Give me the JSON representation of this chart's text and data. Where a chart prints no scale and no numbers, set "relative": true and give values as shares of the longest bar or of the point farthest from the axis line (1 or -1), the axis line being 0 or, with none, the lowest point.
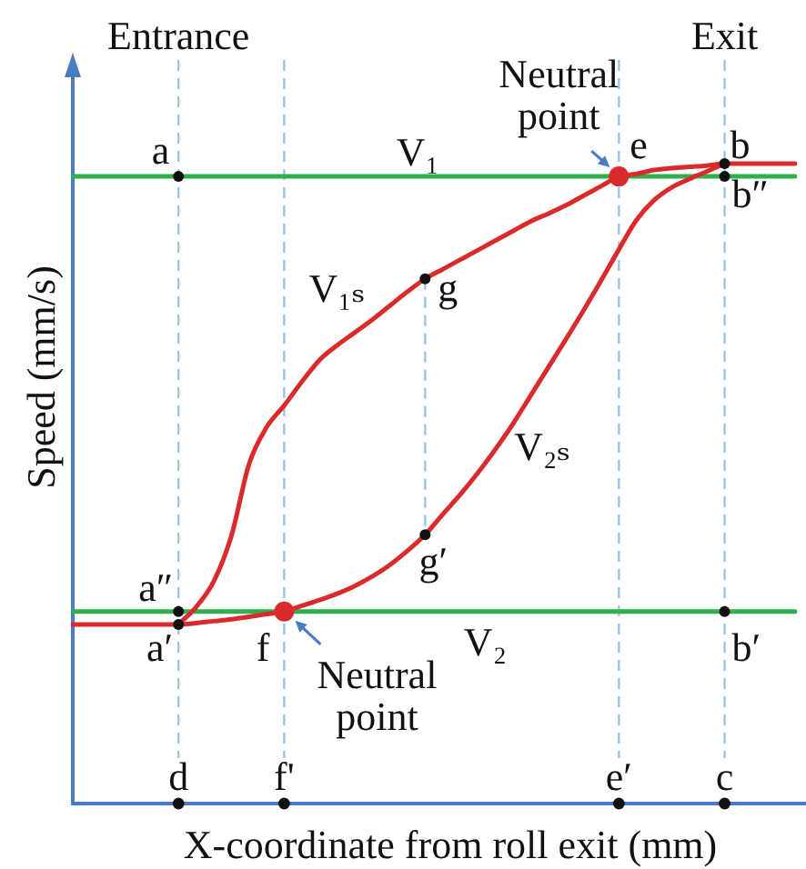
{
  "chart_data": {
    "type": "line",
    "relative": true,
    "grid": "x",
    "xlabel": "X-coordinate from roll exit (mm)",
    "ylabel": "Speed (mm/s)",
    "categories": [
      null,
      null,
      null,
      null,
      null,
      null,
      "d",
      null,
      null,
      null,
      null,
      null,
      "f'",
      null,
      null,
      null,
      null,
      null,
      null,
      null,
      null,
      null,
      null,
      null,
      null,
      null,
      null,
      null,
      null,
      null,
      null,
      "e′",
      null,
      null,
      null,
      null,
      null,
      "c",
      null,
      null,
      null,
      null
    ],
    "series": [
      {
        "name": "V₁",
        "color": "#2eb04a",
        "values": [
          0.98,
          0.98,
          0.98,
          0.98,
          0.98,
          0.98,
          0.98,
          0.98,
          0.98,
          0.98,
          0.98,
          0.98,
          0.98,
          0.98,
          0.98,
          0.98,
          0.98,
          0.98,
          0.98,
          0.98,
          0.98,
          0.98,
          0.98,
          0.98,
          0.98,
          0.98,
          0.98,
          0.98,
          0.98,
          0.98,
          0.98,
          0.98,
          0.98,
          0.98,
          0.98,
          0.98,
          0.98,
          0.98,
          0.98,
          0.98,
          0.98,
          0.98
        ]
      },
      {
        "name": "V₂",
        "color": "#2eb04a",
        "values": [
          0.3,
          0.3,
          0.3,
          0.3,
          0.3,
          0.3,
          0.3,
          0.3,
          0.3,
          0.3,
          0.3,
          0.3,
          0.3,
          0.3,
          0.3,
          0.3,
          0.3,
          0.3,
          0.3,
          0.3,
          0.3,
          0.3,
          0.3,
          0.3,
          0.3,
          0.3,
          0.3,
          0.3,
          0.3,
          0.3,
          0.3,
          0.3,
          0.3,
          0.3,
          0.3,
          0.3,
          0.3,
          0.3,
          0.3,
          0.3,
          0.3,
          0.3
        ]
      },
      {
        "name": "V₁ₛ",
        "color": "#d92b2b",
        "values": [
          null,
          null,
          null,
          null,
          null,
          null,
          0.28,
          0.307,
          0.347,
          0.418,
          0.53,
          0.588,
          0.622,
          0.659,
          0.693,
          0.716,
          0.736,
          0.756,
          0.778,
          0.8,
          0.82,
          0.835,
          0.85,
          0.865,
          0.88,
          0.895,
          0.91,
          0.922,
          0.935,
          0.95,
          0.965,
          0.98,
          0.984,
          0.99,
          0.993,
          0.995,
          0.997,
          1,
          1,
          1,
          1,
          1
        ]
      },
      {
        "name": "V₂ₛ",
        "color": "#d92b2b",
        "values": [
          0.28,
          0.28,
          0.28,
          0.28,
          0.28,
          0.28,
          0.28,
          0.282,
          0.285,
          0.288,
          0.292,
          0.296,
          0.3,
          0.309,
          0.318,
          0.328,
          0.34,
          0.355,
          0.373,
          0.395,
          0.42,
          0.452,
          0.483,
          0.517,
          0.554,
          0.594,
          0.638,
          0.682,
          0.726,
          0.771,
          0.818,
          0.866,
          0.912,
          0.943,
          0.963,
          0.976,
          0.988,
          1,
          null,
          null,
          null,
          null
        ]
      },
      {
        "type": "scatter",
        "marker": "circle",
        "color": "#111111",
        "values": [
          null,
          null,
          null,
          null,
          null,
          null,
          0,
          null,
          null,
          null,
          null,
          null,
          0,
          null,
          null,
          null,
          null,
          null,
          null,
          null,
          null,
          null,
          null,
          null,
          null,
          null,
          null,
          null,
          null,
          null,
          null,
          0,
          null,
          null,
          null,
          null,
          null,
          0,
          null,
          null,
          null,
          null
        ]
      }
    ],
    "annotations": [
      "Entrance",
      "Exit",
      {
        "text": "a",
        "x": "d",
        "y": 0.98
      },
      {
        "text": "a″",
        "x": "d",
        "y": 0.3
      },
      {
        "text": "a′",
        "x": "d",
        "y": 0.28
      },
      {
        "text": "f",
        "x": "f'",
        "y": 0.3
      },
      {
        "text": "g",
        "y": 0.82
      },
      {
        "text": "g′",
        "y": 0.42
      },
      {
        "text": "e",
        "x": "e′",
        "y": 0.98
      },
      {
        "text": "b",
        "x": "c",
        "y": 1
      },
      {
        "text": "b″",
        "x": "c",
        "y": 0.98
      },
      {
        "text": "b′",
        "x": "c",
        "y": 0.3
      },
      {
        "text": "Neutral point",
        "x": "e′",
        "y": 0.98
      },
      {
        "text": "Neutral point",
        "x": "f'",
        "y": 0.3
      }
    ]
  }
}
